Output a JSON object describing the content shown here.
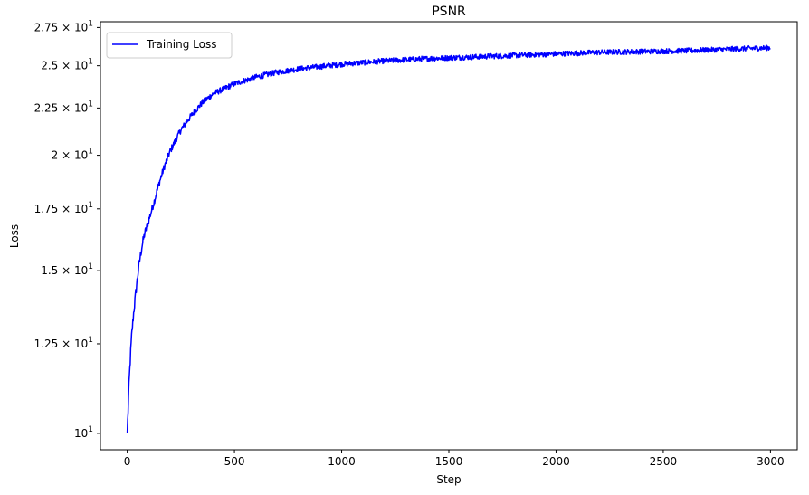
{
  "chart_data": {
    "type": "line",
    "title": "PSNR",
    "xlabel": "Step",
    "ylabel": "Loss",
    "y_scale": "log",
    "xlim": [
      -125,
      3125
    ],
    "ylim": [
      9.6,
      27.9
    ],
    "grid": false,
    "legend": {
      "position": "top-left",
      "entries": [
        "Training Loss"
      ]
    },
    "x_ticks": [
      0,
      500,
      1000,
      1500,
      2000,
      2500,
      3000
    ],
    "x_tick_labels": [
      "0",
      "500",
      "1000",
      "1500",
      "2000",
      "2500",
      "3000"
    ],
    "y_ticks": [
      10,
      12.5,
      15,
      17.5,
      20,
      22.5,
      25,
      27.5
    ],
    "y_tick_labels": [
      {
        "base": "10",
        "exp": "1",
        "show_mult": false,
        "value": 10
      },
      {
        "base": "1.25",
        "exp": "1",
        "show_mult": true,
        "value": 12.5
      },
      {
        "base": "1.5",
        "exp": "1",
        "show_mult": true,
        "value": 15
      },
      {
        "base": "1.75",
        "exp": "1",
        "show_mult": true,
        "value": 17.5
      },
      {
        "base": "2",
        "exp": "1",
        "show_mult": true,
        "value": 20
      },
      {
        "base": "2.25",
        "exp": "1",
        "show_mult": true,
        "value": 22.5
      },
      {
        "base": "2.5",
        "exp": "1",
        "show_mult": true,
        "value": 25
      },
      {
        "base": "2.75",
        "exp": "1",
        "show_mult": true,
        "value": 27.5
      }
    ],
    "series": [
      {
        "name": "Training Loss",
        "color": "#0000ff",
        "x": [
          0,
          10,
          20,
          30,
          40,
          50,
          60,
          70,
          80,
          100,
          125,
          150,
          175,
          200,
          250,
          300,
          350,
          400,
          450,
          500,
          600,
          700,
          800,
          900,
          1000,
          1200,
          1400,
          1600,
          1800,
          2000,
          2200,
          2400,
          2600,
          2800,
          3000
        ],
        "y": [
          10.0,
          11.5,
          12.7,
          13.5,
          14.2,
          14.9,
          15.5,
          16.0,
          16.4,
          17.0,
          17.8,
          18.7,
          19.5,
          20.2,
          21.3,
          22.1,
          22.8,
          23.3,
          23.6,
          23.9,
          24.3,
          24.6,
          24.8,
          24.95,
          25.1,
          25.3,
          25.45,
          25.55,
          25.65,
          25.75,
          25.85,
          25.9,
          25.95,
          26.05,
          26.15
        ]
      }
    ]
  }
}
